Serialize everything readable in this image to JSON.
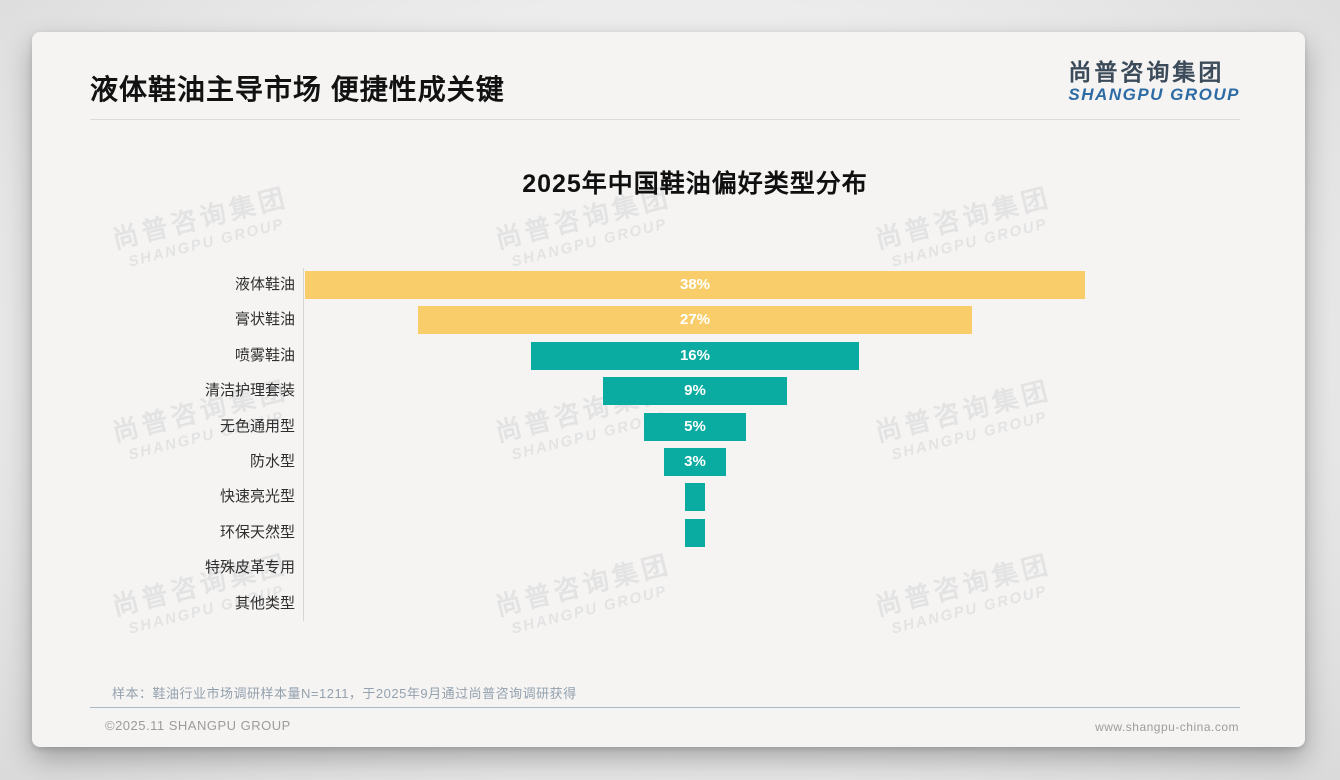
{
  "header": {
    "title": "液体鞋油主导市场 便捷性成关键"
  },
  "logo": {
    "cn": "尚普咨询集团",
    "en": "SHANGPU GROUP"
  },
  "watermark": {
    "cn": "尚普咨询集团",
    "en": "SHANGPU GROUP"
  },
  "chart_data": {
    "type": "bar",
    "orientation": "horizontal-centered-funnel",
    "title": "2025年中国鞋油偏好类型分布",
    "categories": [
      "液体鞋油",
      "膏状鞋油",
      "喷雾鞋油",
      "清洁护理套装",
      "无色通用型",
      "防水型",
      "快速亮光型",
      "环保天然型",
      "特殊皮革专用",
      "其他类型"
    ],
    "values": [
      38,
      27,
      16,
      9,
      5,
      3,
      1,
      1,
      0,
      0
    ],
    "value_labels": [
      "38%",
      "27%",
      "16%",
      "9%",
      "5%",
      "3%",
      "",
      "",
      "",
      ""
    ],
    "bar_colors": [
      "#F9CE6A",
      "#F9CE6A",
      "#0AABA1",
      "#0AABA1",
      "#0AABA1",
      "#0AABA1",
      "#0AABA1",
      "#0AABA1",
      "#0AABA1",
      "#0AABA1"
    ],
    "unit": "%",
    "xlim": [
      0,
      38
    ],
    "legend": false,
    "grid": false,
    "accent_colors": {
      "yellow": "#F9CE6A",
      "teal": "#0AABA1"
    }
  },
  "footnote": {
    "text": "样本：鞋油行业市场调研样本量N=1211，于2025年9月通过尚普咨询调研获得"
  },
  "footer": {
    "left": "©2025.11 SHANGPU GROUP",
    "right": "www.shangpu-china.com"
  }
}
